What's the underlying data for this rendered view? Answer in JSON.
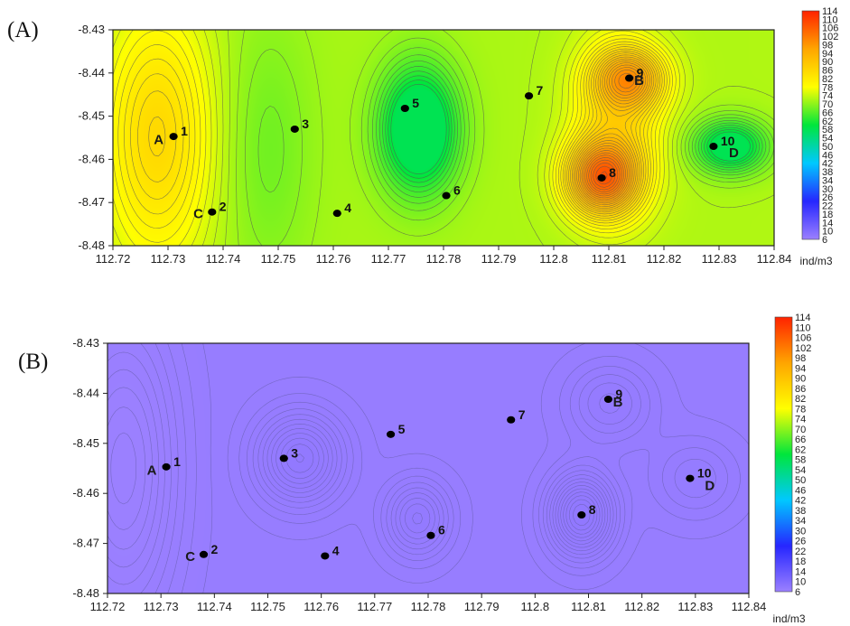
{
  "chart_data": [
    {
      "type": "heatmap",
      "panel_label": "(A)",
      "xlim": [
        112.72,
        112.84
      ],
      "ylim": [
        -8.48,
        -8.43
      ],
      "x_ticks": [
        "112.72",
        "112.73",
        "112.74",
        "112.75",
        "112.76",
        "112.77",
        "112.78",
        "112.79",
        "112.8",
        "112.81",
        "112.82",
        "112.83",
        "112.84"
      ],
      "y_ticks": [
        "-8.43",
        "-8.44",
        "-8.45",
        "-8.46",
        "-8.47",
        "-8.48"
      ],
      "color_scale": {
        "unit": "ind/m3",
        "ticks": [
          "114",
          "110",
          "106",
          "102",
          "98",
          "94",
          "90",
          "86",
          "82",
          "78",
          "74",
          "70",
          "66",
          "62",
          "58",
          "54",
          "50",
          "46",
          "42",
          "38",
          "34",
          "30",
          "26",
          "22",
          "18",
          "14",
          "10",
          "6"
        ],
        "colors": [
          "#9b80ff",
          "#2626ff",
          "#00c8ff",
          "#00e63c",
          "#ffff00",
          "#ffa500",
          "#ff2200"
        ]
      },
      "stations": [
        {
          "id": "1",
          "x": 112.731,
          "y": -8.4547
        },
        {
          "id": "2",
          "x": 112.738,
          "y": -8.4722
        },
        {
          "id": "3",
          "x": 112.753,
          "y": -8.453
        },
        {
          "id": "4",
          "x": 112.7607,
          "y": -8.4725
        },
        {
          "id": "5",
          "x": 112.773,
          "y": -8.4482
        },
        {
          "id": "6",
          "x": 112.7805,
          "y": -8.4684
        },
        {
          "id": "7",
          "x": 112.7955,
          "y": -8.4453
        },
        {
          "id": "8",
          "x": 112.8087,
          "y": -8.4643
        },
        {
          "id": "9",
          "x": 112.8137,
          "y": -8.4412
        },
        {
          "id": "10",
          "x": 112.829,
          "y": -8.457
        }
      ],
      "area_labels": [
        {
          "label": "A",
          "x": 112.7283,
          "y": -8.4554
        },
        {
          "label": "B",
          "x": 112.8155,
          "y": -8.4417
        },
        {
          "label": "C",
          "x": 112.7355,
          "y": -8.4726
        },
        {
          "label": "D",
          "x": 112.8327,
          "y": -8.4584
        }
      ],
      "field": {
        "base": 72,
        "trend_x": 0.07,
        "cx": 112.78,
        "range": [
          58,
          110
        ],
        "features": [
          {
            "x": 112.728,
            "y": -8.4547,
            "amp": 14,
            "sx": 0.01,
            "sy": 0.03
          },
          {
            "x": 112.748,
            "y": -8.4575,
            "amp": -4,
            "sx": 0.008,
            "sy": 0.03
          },
          {
            "x": 112.7755,
            "y": -8.453,
            "amp": -22,
            "sx": 0.0068,
            "sy": 0.014
          },
          {
            "x": 112.8087,
            "y": -8.4643,
            "amp": 28,
            "sx": 0.0065,
            "sy": 0.0085
          },
          {
            "x": 112.8137,
            "y": -8.4412,
            "amp": 20,
            "sx": 0.0065,
            "sy": 0.007
          },
          {
            "x": 112.8115,
            "y": -8.452,
            "amp": 12,
            "sx": 0.008,
            "sy": 0.02
          },
          {
            "x": 112.832,
            "y": -8.457,
            "amp": -18,
            "sx": 0.0065,
            "sy": 0.006
          }
        ]
      }
    },
    {
      "type": "heatmap",
      "panel_label": "(B)",
      "xlim": [
        112.72,
        112.84
      ],
      "ylim": [
        -8.48,
        -8.43
      ],
      "x_ticks": [
        "112.72",
        "112.73",
        "112.74",
        "112.75",
        "112.76",
        "112.77",
        "112.78",
        "112.79",
        "112.8",
        "112.81",
        "112.82",
        "112.83",
        "112.84"
      ],
      "y_ticks": [
        "-8.43",
        "-8.44",
        "-8.45",
        "-8.46",
        "-8.47",
        "-8.48"
      ],
      "color_scale": {
        "unit": "ind/m3",
        "ticks": [
          "114",
          "110",
          "106",
          "102",
          "98",
          "94",
          "90",
          "86",
          "82",
          "78",
          "74",
          "70",
          "66",
          "62",
          "58",
          "54",
          "50",
          "46",
          "42",
          "38",
          "34",
          "30",
          "26",
          "22",
          "18",
          "14",
          "10",
          "6"
        ],
        "colors": [
          "#9b80ff",
          "#2626ff",
          "#00c8ff",
          "#00e63c",
          "#ffff00",
          "#ffa500",
          "#ff2200"
        ]
      },
      "stations": [
        {
          "id": "1",
          "x": 112.731,
          "y": -8.4547
        },
        {
          "id": "2",
          "x": 112.738,
          "y": -8.4722
        },
        {
          "id": "3",
          "x": 112.753,
          "y": -8.453
        },
        {
          "id": "4",
          "x": 112.7607,
          "y": -8.4725
        },
        {
          "id": "5",
          "x": 112.773,
          "y": -8.4482
        },
        {
          "id": "6",
          "x": 112.7805,
          "y": -8.4684
        },
        {
          "id": "7",
          "x": 112.7955,
          "y": -8.4453
        },
        {
          "id": "8",
          "x": 112.8087,
          "y": -8.4643
        },
        {
          "id": "9",
          "x": 112.8137,
          "y": -8.4412
        },
        {
          "id": "10",
          "x": 112.829,
          "y": -8.457
        }
      ],
      "area_labels": [
        {
          "label": "A",
          "x": 112.7283,
          "y": -8.4554
        },
        {
          "label": "B",
          "x": 112.8155,
          "y": -8.4417
        },
        {
          "label": "C",
          "x": 112.7355,
          "y": -8.4726
        },
        {
          "label": "D",
          "x": 112.8327,
          "y": -8.4584
        }
      ],
      "field": {
        "base": 6.6,
        "trend_x": 0,
        "cx": 112.78,
        "range": [
          5.8,
          7.6
        ],
        "features": [
          {
            "x": 112.723,
            "y": -8.455,
            "amp": -0.7,
            "sx": 0.01,
            "sy": 0.03
          },
          {
            "x": 112.756,
            "y": -8.453,
            "amp": 0.8,
            "sx": 0.008,
            "sy": 0.009
          },
          {
            "x": 112.778,
            "y": -8.465,
            "amp": 0.6,
            "sx": 0.006,
            "sy": 0.0075
          },
          {
            "x": 112.8087,
            "y": -8.4643,
            "amp": 1.0,
            "sx": 0.006,
            "sy": 0.008
          },
          {
            "x": 112.814,
            "y": -8.442,
            "amp": 0.4,
            "sx": 0.008,
            "sy": 0.008
          },
          {
            "x": 112.83,
            "y": -8.457,
            "amp": 0.3,
            "sx": 0.008,
            "sy": 0.008
          }
        ]
      }
    }
  ]
}
